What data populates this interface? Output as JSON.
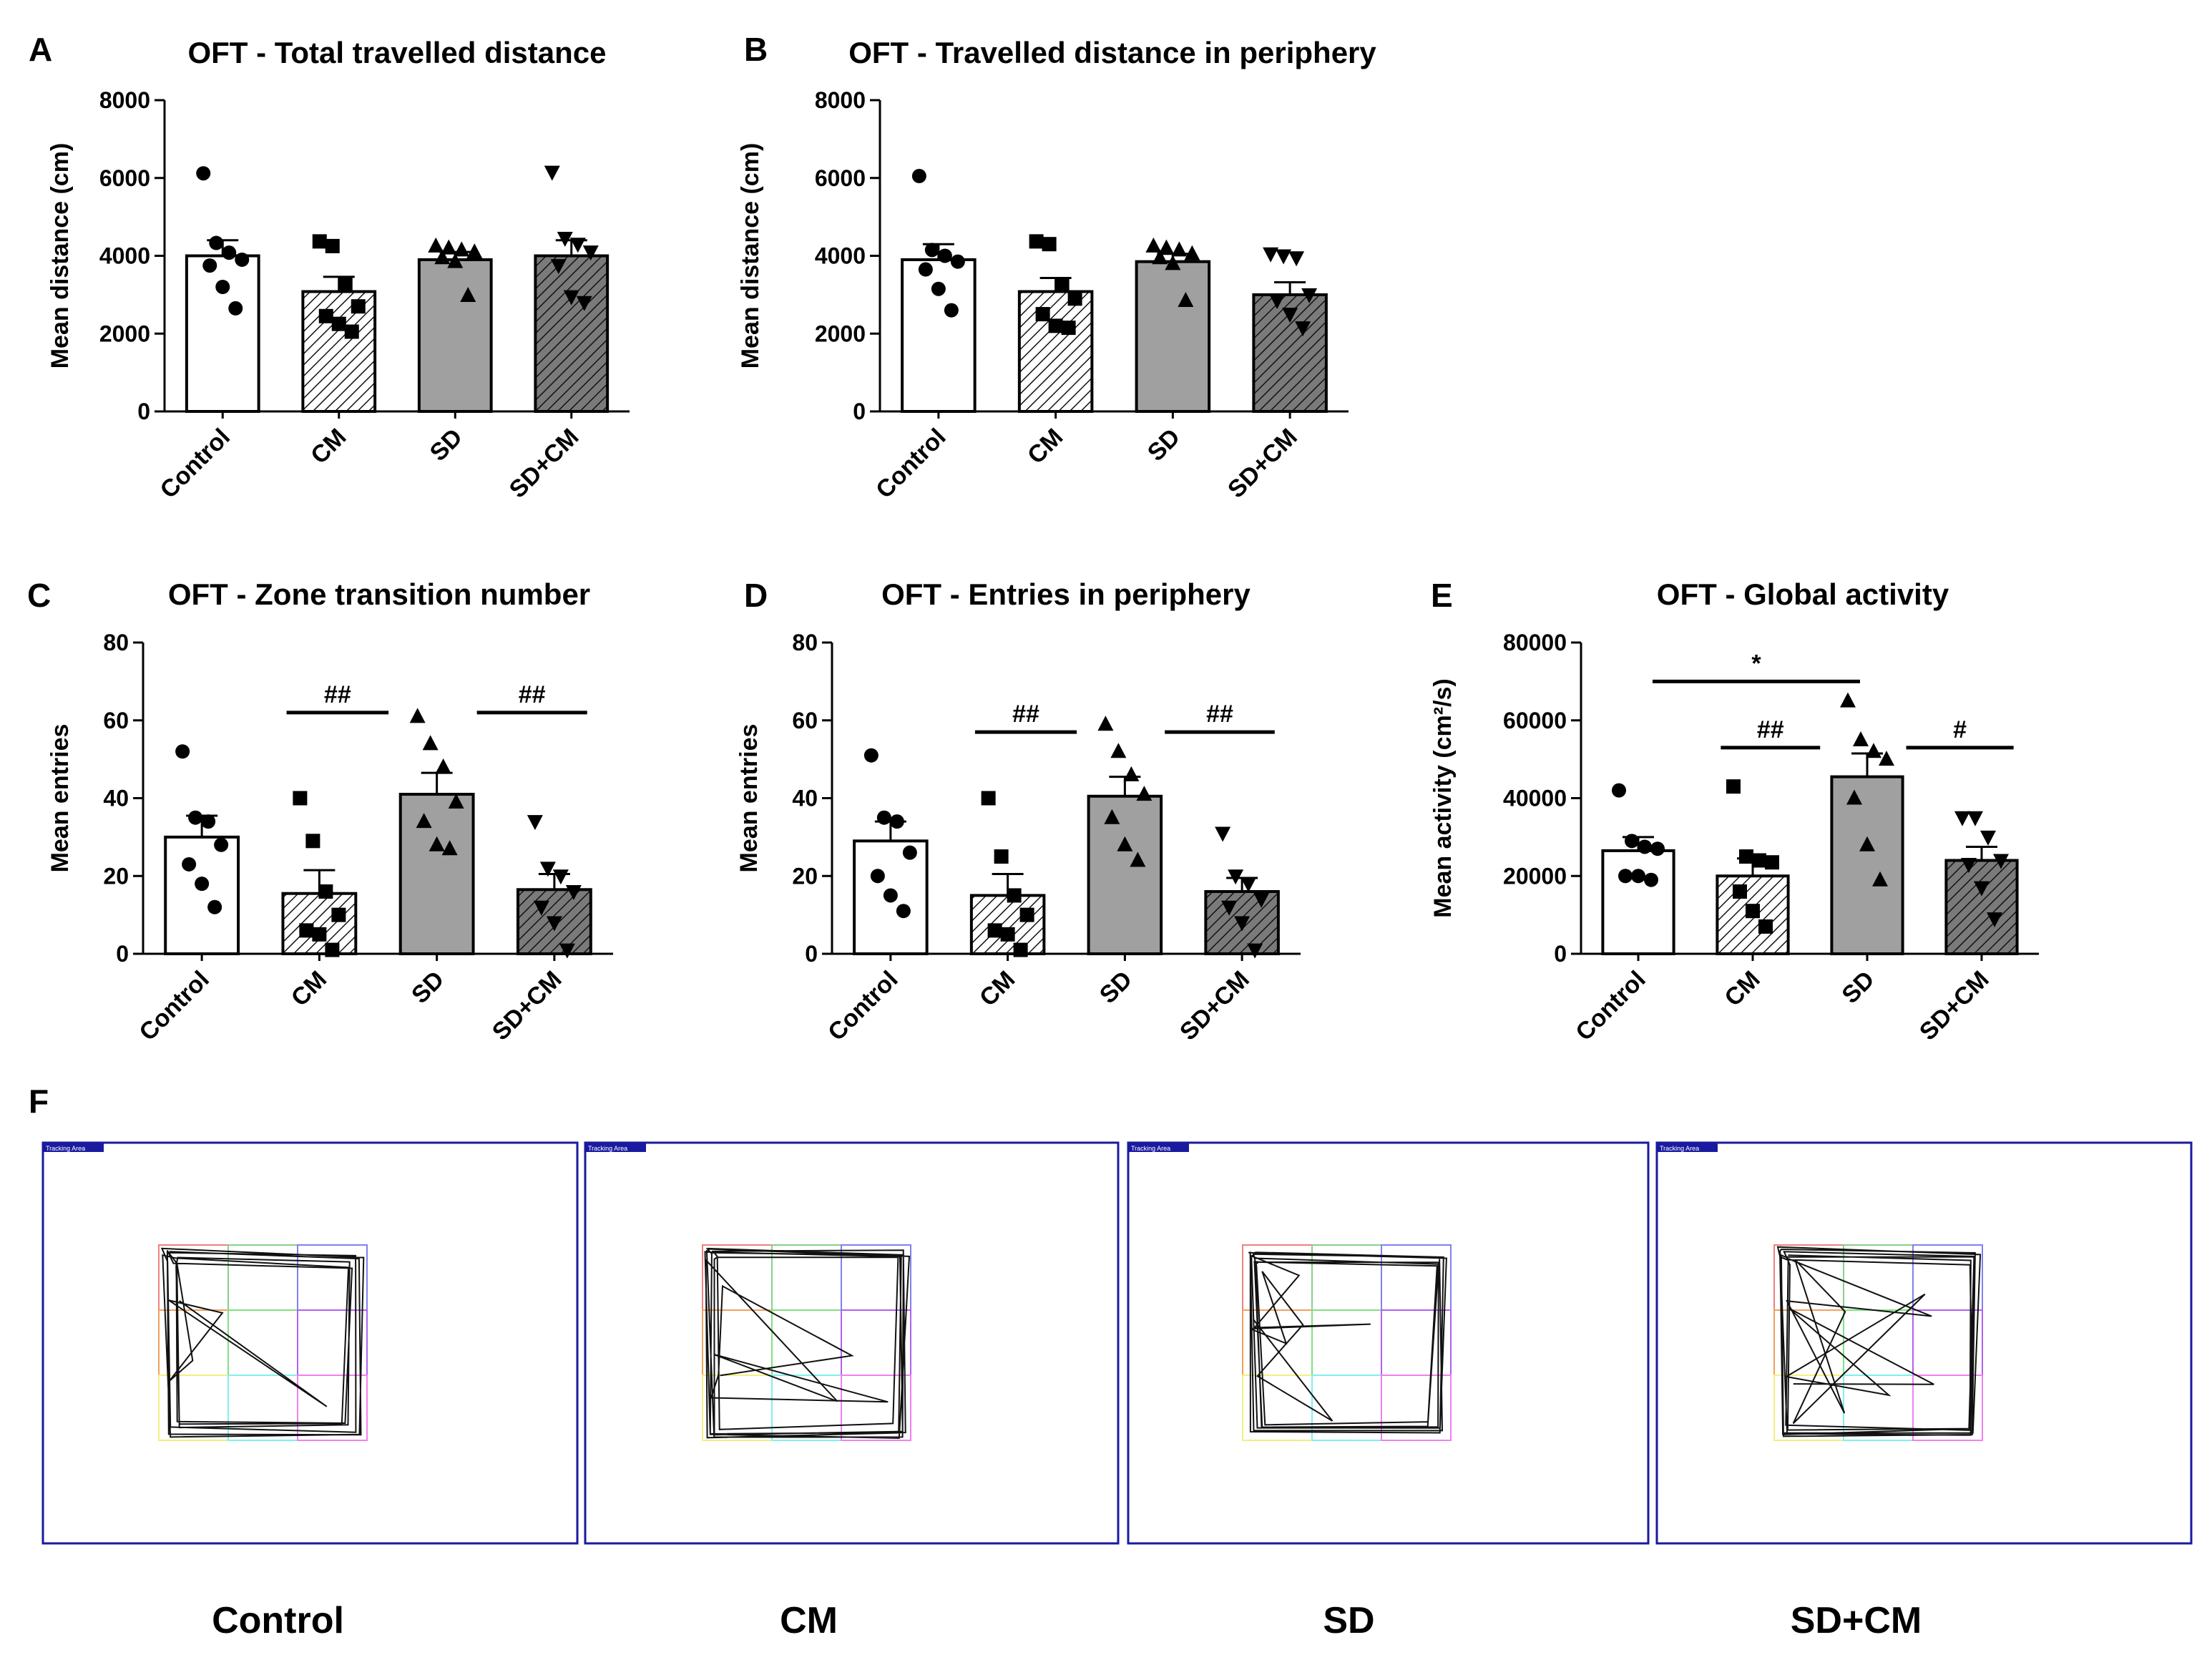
{
  "colors": {
    "control": "#ffffff",
    "cm": "#ffffff",
    "sd": "#a0a0a0",
    "sdcm": "#7a7a7a",
    "hatch": "#000000",
    "arena": "#1a1aa0",
    "track": "#111111"
  },
  "chart_data": [
    {
      "letter": "A",
      "type": "bar",
      "title": "OFT - Total travelled distance",
      "categories": [
        "Control",
        "CM",
        "SD",
        "SD+CM"
      ],
      "values": [
        4000,
        3080,
        3900,
        4000
      ],
      "sem": [
        400,
        380,
        200,
        400
      ],
      "points": [
        [
          6120,
          4330,
          4080,
          3900,
          3750,
          3200,
          2650
        ],
        [
          4370,
          4250,
          3300,
          2700,
          2450,
          2250,
          2050
        ],
        [
          4250,
          4200,
          4150,
          4100,
          3950,
          3850,
          2980
        ],
        [
          6150,
          4450,
          4300,
          4100,
          3750,
          2950,
          2800
        ]
      ],
      "ylabel": "Mean distance (cm)",
      "ylim": [
        0,
        8000
      ],
      "yticks": [
        "0",
        "2000",
        "4000",
        "6000",
        "8000"
      ],
      "significance": []
    },
    {
      "letter": "B",
      "type": "bar",
      "title": "OFT - Travelled distance in periphery",
      "categories": [
        "Control",
        "CM",
        "SD",
        "SD+CM"
      ],
      "values": [
        3900,
        3080,
        3850,
        3000
      ],
      "sem": [
        400,
        350,
        200,
        320
      ],
      "points": [
        [
          6050,
          4150,
          4000,
          3850,
          3650,
          3150,
          2600
        ],
        [
          4370,
          4300,
          3250,
          2900,
          2500,
          2200,
          2150
        ],
        [
          4250,
          4200,
          4150,
          4050,
          3950,
          3800,
          2850
        ],
        [
          4050,
          4000,
          3950,
          3000,
          2850,
          2500,
          2150
        ]
      ],
      "ylabel": "Mean distance (cm)",
      "ylim": [
        0,
        8000
      ],
      "yticks": [
        "0",
        "2000",
        "4000",
        "6000",
        "8000"
      ],
      "significance": []
    },
    {
      "letter": "C",
      "type": "bar",
      "title": "OFT - Zone transition number",
      "categories": [
        "Control",
        "CM",
        "SD",
        "SD+CM"
      ],
      "values": [
        30,
        15.5,
        41,
        16.5
      ],
      "sem": [
        5.5,
        6,
        5.5,
        4
      ],
      "points": [
        [
          52,
          35,
          34,
          28,
          23,
          18,
          12
        ],
        [
          40,
          29,
          16,
          10,
          6,
          5,
          1
        ],
        [
          61,
          54,
          48,
          39,
          34,
          28,
          27
        ],
        [
          34,
          22,
          20,
          16,
          12,
          8,
          1
        ]
      ],
      "ylabel": "Mean entries",
      "ylim": [
        0,
        80
      ],
      "yticks": [
        "0",
        "20",
        "40",
        "60",
        "80"
      ],
      "significance": [
        {
          "from": 1,
          "to": 2,
          "label": "##",
          "y": 62
        },
        {
          "from": 2,
          "to": 3,
          "label": "##",
          "y": 62
        }
      ]
    },
    {
      "letter": "D",
      "type": "bar",
      "title": "OFT - Entries in periphery",
      "categories": [
        "Control",
        "CM",
        "SD",
        "SD+CM"
      ],
      "values": [
        29,
        15,
        40.5,
        16
      ],
      "sem": [
        5,
        5.5,
        5,
        3.5
      ],
      "points": [
        [
          51,
          35,
          34,
          26,
          20,
          15,
          11
        ],
        [
          40,
          25,
          15,
          10,
          6,
          5,
          1
        ],
        [
          59,
          52,
          46,
          41,
          35,
          28,
          24
        ],
        [
          31,
          20,
          18,
          14,
          12,
          8,
          1
        ]
      ],
      "ylabel": "Mean entries",
      "ylim": [
        0,
        80
      ],
      "yticks": [
        "0",
        "20",
        "40",
        "60",
        "80"
      ],
      "significance": [
        {
          "from": 1,
          "to": 2,
          "label": "##",
          "y": 57
        },
        {
          "from": 2,
          "to": 3,
          "label": "##",
          "y": 57
        }
      ]
    },
    {
      "letter": "E",
      "type": "bar",
      "title": "OFT - Global activity",
      "categories": [
        "Control",
        "CM",
        "SD",
        "SD+CM"
      ],
      "values": [
        26500,
        20000,
        45500,
        24000
      ],
      "sem": [
        3500,
        4500,
        6000,
        3500
      ],
      "points": [
        [
          42000,
          29000,
          27500,
          27000,
          20000,
          20000,
          19000
        ],
        [
          43000,
          25000,
          24000,
          23500,
          16000,
          11000,
          7000
        ],
        [
          65000,
          55000,
          52000,
          50000,
          40000,
          28000,
          19000
        ],
        [
          35000,
          35000,
          30000,
          24000,
          23000,
          17000,
          9000
        ]
      ],
      "ylabel": "Mean activity (cm²/s)",
      "ylim": [
        0,
        80000
      ],
      "yticks": [
        "0",
        "20000",
        "40000",
        "60000",
        "80000"
      ],
      "significance": [
        {
          "from": 0,
          "to": 2,
          "label": "*",
          "y": 70000
        },
        {
          "from": 1,
          "to": 2,
          "label": "##",
          "y": 53000
        },
        {
          "from": 2,
          "to": 3,
          "label": "#",
          "y": 53000
        }
      ]
    }
  ],
  "tracking": {
    "letter": "F",
    "area_label": "Tracking Area",
    "groups": [
      "Control",
      "CM",
      "SD",
      "SD+CM"
    ]
  }
}
